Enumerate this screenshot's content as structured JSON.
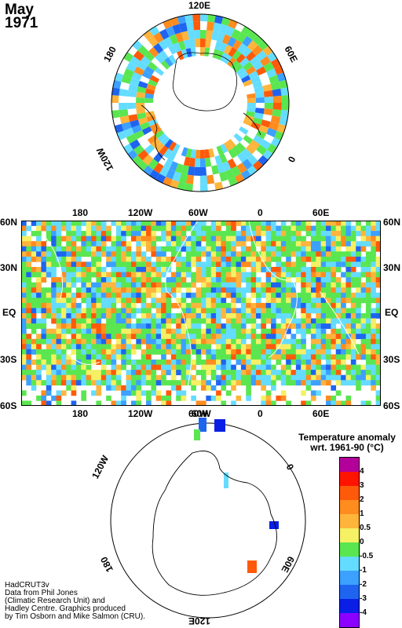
{
  "title": {
    "month": "May",
    "year": "1971"
  },
  "north_polar_labels": {
    "top": "120E",
    "left": "180",
    "right": "60E",
    "lower_left": "120W",
    "lower_right": "0"
  },
  "world_map": {
    "top_lon_labels": [
      "180",
      "120W",
      "60W",
      "0",
      "60E"
    ],
    "bottom_lon_labels": [
      "180",
      "120W",
      "60W",
      "0",
      "60E"
    ],
    "left_lat_labels": [
      "60N",
      "30N",
      "EQ",
      "30S",
      "60S"
    ],
    "right_lat_labels": [
      "60N",
      "30N",
      "EQ",
      "30S",
      "60S"
    ]
  },
  "south_polar_labels": {
    "top": "60W",
    "upper_left": "120W",
    "right": "0",
    "lower_left": "180",
    "lower_right": "60E",
    "bottom": "120E"
  },
  "legend": {
    "title_line1": "Temperature anomaly",
    "title_line2": "wrt. 1961-90  (°C)",
    "levels": [
      {
        "label": "4",
        "color": "#b4009a"
      },
      {
        "label": "3",
        "color": "#ff1400"
      },
      {
        "label": "2",
        "color": "#ff5a0a"
      },
      {
        "label": "1",
        "color": "#ff8c1e"
      },
      {
        "label": "0.5",
        "color": "#ffb43c"
      },
      {
        "label": "0",
        "color": "#f5f064"
      },
      {
        "label": "-0.5",
        "color": "#5ae650"
      },
      {
        "label": "-1",
        "color": "#64dcff"
      },
      {
        "label": "-2",
        "color": "#3ca0ff"
      },
      {
        "label": "-3",
        "color": "#1e64f0"
      },
      {
        "label": "-4",
        "color": "#0a1ee6"
      },
      {
        "label": "",
        "color": "#8c00ff"
      }
    ]
  },
  "credits": [
    "HadCRUT3v",
    "Data from Phil Jones",
    "(Climatic Research Unit) and",
    "Hadley Centre.  Graphics produced",
    "by Tim Osborn and Mike Salmon (CRU)."
  ]
}
